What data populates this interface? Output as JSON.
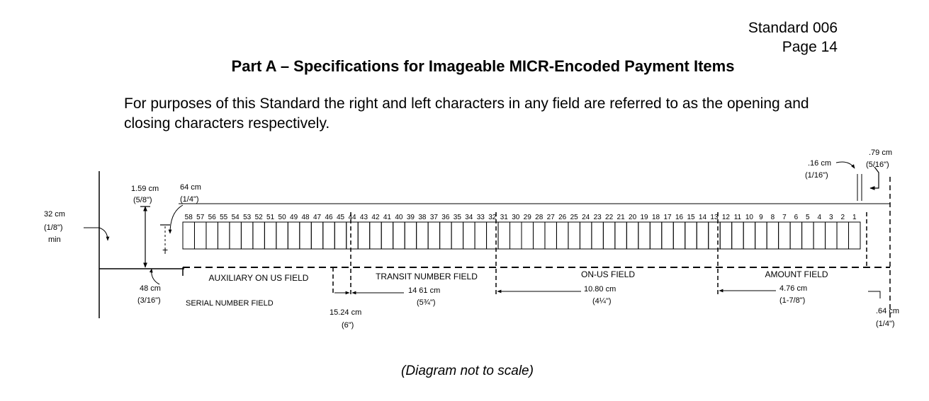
{
  "header": {
    "standard": "Standard 006",
    "page": "Page 14"
  },
  "title": "Part A – Specifications for Imageable MICR-Encoded Payment Items",
  "paragraph": "For purposes of this Standard the right and left characters in any field are referred to as the opening and closing characters respectively.",
  "diagram": {
    "position_numbers": [
      58,
      57,
      56,
      55,
      54,
      53,
      52,
      51,
      50,
      49,
      48,
      47,
      46,
      45,
      44,
      43,
      42,
      41,
      40,
      39,
      38,
      37,
      36,
      35,
      34,
      33,
      32,
      31,
      30,
      29,
      28,
      27,
      26,
      25,
      24,
      23,
      22,
      21,
      20,
      19,
      18,
      17,
      16,
      15,
      14,
      13,
      12,
      11,
      10,
      9,
      8,
      7,
      6,
      5,
      4,
      3,
      2,
      1
    ],
    "fields": {
      "auxiliary": "AUXILIARY ON US FIELD",
      "transit": "TRANSIT NUMBER FIELD",
      "onus": "ON-US FIELD",
      "amount": "AMOUNT FIELD",
      "serial": "SERIAL NUMBER FIELD"
    },
    "dims": {
      "d32_cm": "32 cm",
      "d32_in": "(1/8\")",
      "d32_min": "min",
      "d159_cm": "1.59 cm",
      "d159_in": "(5/8\")",
      "d64a_cm": "64 cm",
      "d64a_in": "(1/4\")",
      "d48_cm": "48 cm",
      "d48_in": "(3/16\")",
      "d1524_cm": "15.24 cm",
      "d1524_in": "(6\")",
      "d1461_cm": "14 61 cm",
      "d1461_in": "(5¾\")",
      "d1080_cm": "10.80 cm",
      "d1080_in": "(4¼\")",
      "d476_cm": "4.76 cm",
      "d476_in": "(1-7/8\")",
      "d16_cm": ".16 cm",
      "d16_in": "(1/16\")",
      "d79_cm": ".79 cm",
      "d79_in": "(5/16\")",
      "d64b_cm": ".64 cm",
      "d64b_in": "(1/4\")"
    }
  },
  "note": "(Diagram not to scale)"
}
